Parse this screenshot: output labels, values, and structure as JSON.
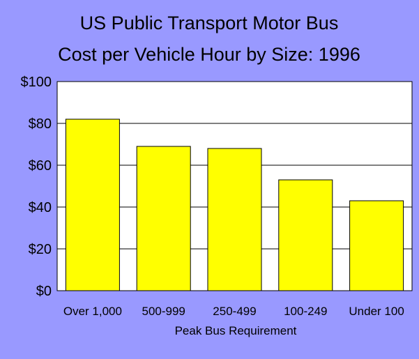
{
  "colors": {
    "background": "#9999ff",
    "plot_area": "#ffffff",
    "bar_fill": "#ffff00",
    "bar_stroke": "#000000",
    "gridline": "#000000"
  },
  "chart_data": {
    "type": "bar",
    "title_lines": [
      "US Public Transport Motor Bus",
      "Cost per Vehicle Hour by Size: 1996"
    ],
    "xlabel": "Peak Bus Requirement",
    "ylabel": "",
    "categories": [
      "Over 1,000",
      "500-999",
      "250-499",
      "100-249",
      "Under 100"
    ],
    "values": [
      82,
      69,
      68,
      53,
      43
    ],
    "ylim": [
      0,
      100
    ],
    "yticks": [
      0,
      20,
      40,
      60,
      80,
      100
    ],
    "ytick_labels": [
      "$0",
      "$20",
      "$40",
      "$60",
      "$80",
      "$100"
    ],
    "grid": true,
    "legend": "none"
  }
}
